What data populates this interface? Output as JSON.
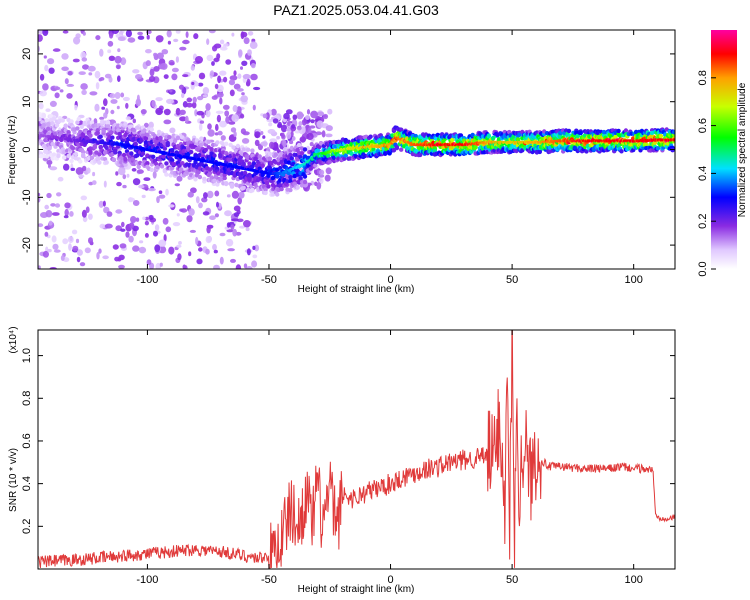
{
  "title": "PAZ1.2025.053.04.41.G03",
  "colors": {
    "snr_line": "#e03a3a",
    "frame": "#000000"
  },
  "chart_data": [
    {
      "type": "heatmap",
      "xlabel": "Height of straight line (km)",
      "ylabel": "Frequency (Hz)",
      "xlim": [
        -145,
        117
      ],
      "ylim": [
        -25,
        25
      ],
      "xticks": [
        -100,
        -50,
        0,
        50,
        100
      ],
      "yticks": [
        -20,
        -10,
        0,
        10,
        20
      ],
      "grid": false,
      "ridge": {
        "x": [
          -145,
          -130,
          -120,
          -110,
          -100,
          -90,
          -80,
          -70,
          -60,
          -50,
          -45,
          -40,
          -35,
          -30,
          -25,
          -20,
          -10,
          0,
          2,
          5,
          10,
          20,
          30,
          40,
          50,
          60,
          70,
          80,
          90,
          100,
          110,
          117
        ],
        "frequency": [
          3,
          2,
          1.5,
          1,
          0,
          -1,
          -2,
          -3,
          -4,
          -5,
          -5,
          -4,
          -3,
          -1,
          -0.5,
          0,
          0.5,
          1,
          2.5,
          2,
          1,
          1,
          1,
          1.5,
          1.5,
          1.5,
          1.8,
          1.8,
          1.8,
          1.8,
          2,
          2
        ],
        "amplitude": [
          0.15,
          0.2,
          0.25,
          0.3,
          0.3,
          0.3,
          0.3,
          0.3,
          0.3,
          0.3,
          0.35,
          0.4,
          0.45,
          0.5,
          0.6,
          0.7,
          0.75,
          0.8,
          0.85,
          0.8,
          0.85,
          0.9,
          0.9,
          0.8,
          0.75,
          0.8,
          0.85,
          0.9,
          0.9,
          0.9,
          0.9,
          0.9
        ]
      }
    },
    {
      "type": "line",
      "xlabel": "Height of straight line (km)",
      "ylabel": "SNR (10 * v/v)",
      "y_multiplier_label": "(x10⁴)",
      "xlim": [
        -145,
        117
      ],
      "ylim": [
        0,
        1.12
      ],
      "xticks": [
        -100,
        -50,
        0,
        50,
        100
      ],
      "yticks": [
        0.2,
        0.4,
        0.6,
        0.8,
        1.0
      ],
      "grid": false,
      "series": [
        {
          "x": [
            -145,
            -130,
            -120,
            -110,
            -100,
            -90,
            -80,
            -70,
            -60,
            -55,
            -50,
            -48,
            -45,
            -42,
            -40,
            -38,
            -35,
            -32,
            -30,
            -28,
            -25,
            -22,
            -20,
            -15,
            -10,
            -5,
            0,
            5,
            10,
            15,
            20,
            25,
            30,
            35,
            40,
            43,
            45,
            47,
            48,
            49,
            50,
            51,
            52,
            53,
            55,
            57,
            60,
            63,
            65,
            70,
            80,
            90,
            95,
            100,
            105,
            108,
            109,
            110,
            115,
            117
          ],
          "y": [
            0.02,
            0.03,
            0.04,
            0.05,
            0.06,
            0.07,
            0.08,
            0.07,
            0.05,
            0.04,
            0.05,
            0.08,
            0.15,
            0.25,
            0.28,
            0.18,
            0.35,
            0.22,
            0.4,
            0.2,
            0.38,
            0.18,
            0.35,
            0.33,
            0.36,
            0.38,
            0.4,
            0.43,
            0.45,
            0.47,
            0.48,
            0.5,
            0.51,
            0.52,
            0.53,
            0.54,
            0.72,
            0.3,
            0.85,
            0.2,
            1.12,
            0.12,
            0.8,
            0.35,
            0.65,
            0.4,
            0.55,
            0.5,
            0.48,
            0.48,
            0.47,
            0.47,
            0.48,
            0.47,
            0.47,
            0.46,
            0.25,
            0.24,
            0.24,
            0.24
          ]
        }
      ]
    }
  ],
  "colorbar": {
    "label": "Normalized spectral amplitude",
    "range": [
      0,
      1
    ],
    "ticks": [
      0.0,
      0.2,
      0.4,
      0.6,
      0.8
    ],
    "tick_labels": [
      "0.0",
      "0.2",
      "0.4",
      "0.6",
      "0.8"
    ]
  }
}
